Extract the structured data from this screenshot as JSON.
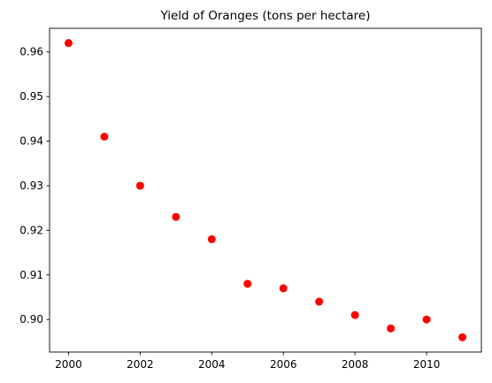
{
  "chart_data": {
    "type": "scatter",
    "title": "Yield of Oranges (tons per hectare)",
    "xlabel": "",
    "ylabel": "",
    "xlim": [
      1999.47,
      2011.53
    ],
    "ylim": [
      0.8927,
      0.9653
    ],
    "xticks": [
      2000,
      2002,
      2004,
      2006,
      2008,
      2010
    ],
    "yticks": [
      0.9,
      0.91,
      0.92,
      0.93,
      0.94,
      0.95,
      0.96
    ],
    "grid": false,
    "legend": "none",
    "marker_color": "#ff0000",
    "x": [
      2000,
      2001,
      2002,
      2003,
      2004,
      2005,
      2006,
      2007,
      2008,
      2009,
      2010,
      2011
    ],
    "y": [
      0.962,
      0.941,
      0.93,
      0.923,
      0.918,
      0.908,
      0.907,
      0.904,
      0.901,
      0.898,
      0.9,
      0.896
    ]
  }
}
